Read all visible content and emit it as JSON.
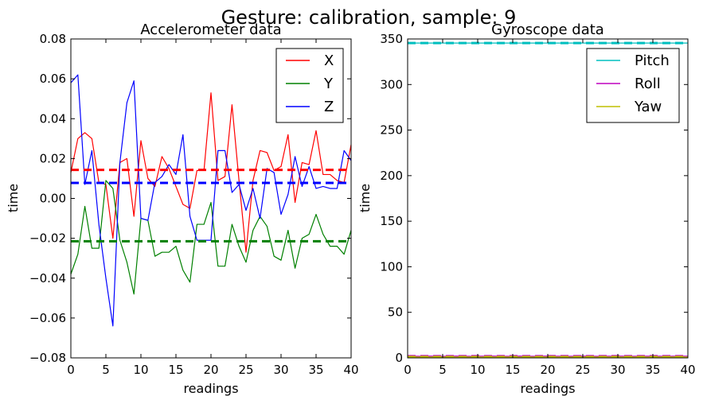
{
  "figure": {
    "suptitle": "Gesture: calibration, sample: 9"
  },
  "chart_data": [
    {
      "type": "line",
      "title": "Accelerometer data",
      "xlabel": "readings",
      "ylabel": "time",
      "xlim": [
        0,
        40
      ],
      "ylim": [
        -0.08,
        0.08
      ],
      "xticks": [
        "0",
        "5",
        "10",
        "15",
        "20",
        "25",
        "30",
        "35",
        "40"
      ],
      "yticks": [
        "−0.08",
        "−0.06",
        "−0.04",
        "−0.02",
        "0.00",
        "0.02",
        "0.04",
        "0.06",
        "0.08"
      ],
      "legend_position": "top-right",
      "grid": false,
      "x": [
        0,
        1,
        2,
        3,
        4,
        5,
        6,
        7,
        8,
        9,
        10,
        11,
        12,
        13,
        14,
        15,
        16,
        17,
        18,
        19,
        20,
        21,
        22,
        23,
        24,
        25,
        26,
        27,
        28,
        29,
        30,
        31,
        32,
        33,
        34,
        35,
        36,
        37,
        38,
        39,
        40
      ],
      "series": [
        {
          "name": "X",
          "color": "#ff0000",
          "values": [
            0.013,
            0.03,
            0.033,
            0.03,
            0.008,
            0.007,
            -0.02,
            0.018,
            0.02,
            -0.009,
            0.029,
            0.01,
            0.006,
            0.021,
            0.015,
            0.006,
            -0.003,
            -0.005,
            0.014,
            0.014,
            0.053,
            0.009,
            0.011,
            0.047,
            0.009,
            -0.027,
            0.009,
            0.024,
            0.023,
            0.014,
            0.016,
            0.032,
            -0.002,
            0.018,
            0.017,
            0.034,
            0.012,
            0.012,
            0.009,
            0.008,
            0.027
          ]
        },
        {
          "name": "Y",
          "color": "#008000",
          "values": [
            -0.038,
            -0.028,
            -0.004,
            -0.025,
            -0.025,
            0.009,
            0.005,
            -0.021,
            -0.032,
            -0.048,
            -0.01,
            -0.011,
            -0.029,
            -0.027,
            -0.027,
            -0.024,
            -0.036,
            -0.042,
            -0.013,
            -0.013,
            -0.002,
            -0.034,
            -0.034,
            -0.013,
            -0.024,
            -0.032,
            -0.016,
            -0.009,
            -0.014,
            -0.029,
            -0.031,
            -0.016,
            -0.035,
            -0.02,
            -0.018,
            -0.008,
            -0.018,
            -0.024,
            -0.024,
            -0.028,
            -0.016
          ]
        },
        {
          "name": "Z",
          "color": "#0000ff",
          "values": [
            0.058,
            0.062,
            0.007,
            0.024,
            -0.013,
            -0.04,
            -0.064,
            0.018,
            0.048,
            0.059,
            -0.01,
            -0.011,
            0.008,
            0.011,
            0.017,
            0.012,
            0.032,
            -0.009,
            -0.021,
            -0.021,
            -0.021,
            0.024,
            0.024,
            0.003,
            0.007,
            -0.006,
            0.005,
            -0.01,
            0.015,
            0.013,
            -0.008,
            0.002,
            0.021,
            0.006,
            0.016,
            0.005,
            0.006,
            0.005,
            0.005,
            0.024,
            0.019
          ]
        }
      ],
      "mean_lines": [
        {
          "series": "X",
          "value": 0.0143,
          "color": "#ff0000",
          "style": "dashed"
        },
        {
          "series": "Y",
          "value": -0.0215,
          "color": "#008000",
          "style": "dashed"
        },
        {
          "series": "Z",
          "value": 0.0078,
          "color": "#0000ff",
          "style": "dashed"
        }
      ]
    },
    {
      "type": "line",
      "title": "Gyroscope data",
      "xlabel": "readings",
      "ylabel": "time",
      "xlim": [
        0,
        40
      ],
      "ylim": [
        0,
        350
      ],
      "xticks": [
        "0",
        "5",
        "10",
        "15",
        "20",
        "25",
        "30",
        "35",
        "40"
      ],
      "yticks": [
        "0",
        "50",
        "100",
        "150",
        "200",
        "250",
        "300",
        "350"
      ],
      "legend_position": "top-right",
      "grid": false,
      "x": [
        0,
        1,
        2,
        3,
        4,
        5,
        6,
        7,
        8,
        9,
        10,
        11,
        12,
        13,
        14,
        15,
        16,
        17,
        18,
        19,
        20,
        21,
        22,
        23,
        24,
        25,
        26,
        27,
        28,
        29,
        30,
        31,
        32,
        33,
        34,
        35,
        36,
        37,
        38,
        39,
        40
      ],
      "series": [
        {
          "name": "Pitch",
          "color": "#00bfbf",
          "values": [
            345.5,
            345.6,
            345.5,
            345.6,
            345.5,
            345.6,
            345.5,
            345.6,
            345.5,
            345.6,
            345.5,
            345.6,
            345.5,
            345.6,
            345.5,
            345.6,
            345.5,
            345.6,
            345.5,
            345.6,
            345.5,
            345.6,
            345.5,
            345.6,
            345.5,
            345.6,
            345.5,
            345.6,
            345.5,
            345.6,
            345.5,
            345.6,
            345.5,
            345.6,
            345.5,
            345.6,
            345.5,
            345.6,
            345.5,
            345.6,
            345.5
          ]
        },
        {
          "name": "Roll",
          "color": "#bf00bf",
          "values": [
            1.8,
            1.9,
            1.8,
            2.0,
            1.9,
            1.8,
            1.9,
            2.0,
            1.9,
            1.8,
            1.9,
            1.9,
            2.0,
            1.9,
            1.8,
            1.9,
            2.0,
            1.9,
            1.8,
            1.9,
            2.0,
            1.9,
            1.9,
            1.8,
            1.9,
            2.0,
            1.9,
            1.8,
            1.9,
            1.9,
            2.0,
            1.9,
            1.8,
            1.9,
            1.9,
            2.0,
            1.9,
            1.8,
            1.9,
            1.9,
            1.9
          ]
        },
        {
          "name": "Yaw",
          "color": "#bfbf00",
          "values": [
            0.9,
            1.0,
            0.9,
            0.9,
            1.0,
            0.9,
            1.0,
            0.9,
            0.9,
            1.0,
            0.9,
            0.9,
            1.0,
            0.9,
            1.0,
            0.9,
            0.9,
            1.0,
            0.9,
            0.9,
            1.0,
            0.9,
            1.0,
            0.9,
            0.9,
            1.0,
            0.9,
            0.9,
            1.0,
            0.9,
            1.0,
            0.9,
            0.9,
            1.0,
            0.9,
            0.9,
            1.0,
            0.9,
            1.0,
            0.9,
            0.9
          ]
        }
      ],
      "mean_lines": [
        {
          "series": "Pitch",
          "value": 345.55,
          "color": "#00bfbf",
          "style": "dashed"
        },
        {
          "series": "Roll",
          "value": 1.9,
          "color": "#bf00bf",
          "style": "dashed"
        },
        {
          "series": "Yaw",
          "value": 0.94,
          "color": "#bfbf00",
          "style": "dashed"
        }
      ]
    }
  ]
}
